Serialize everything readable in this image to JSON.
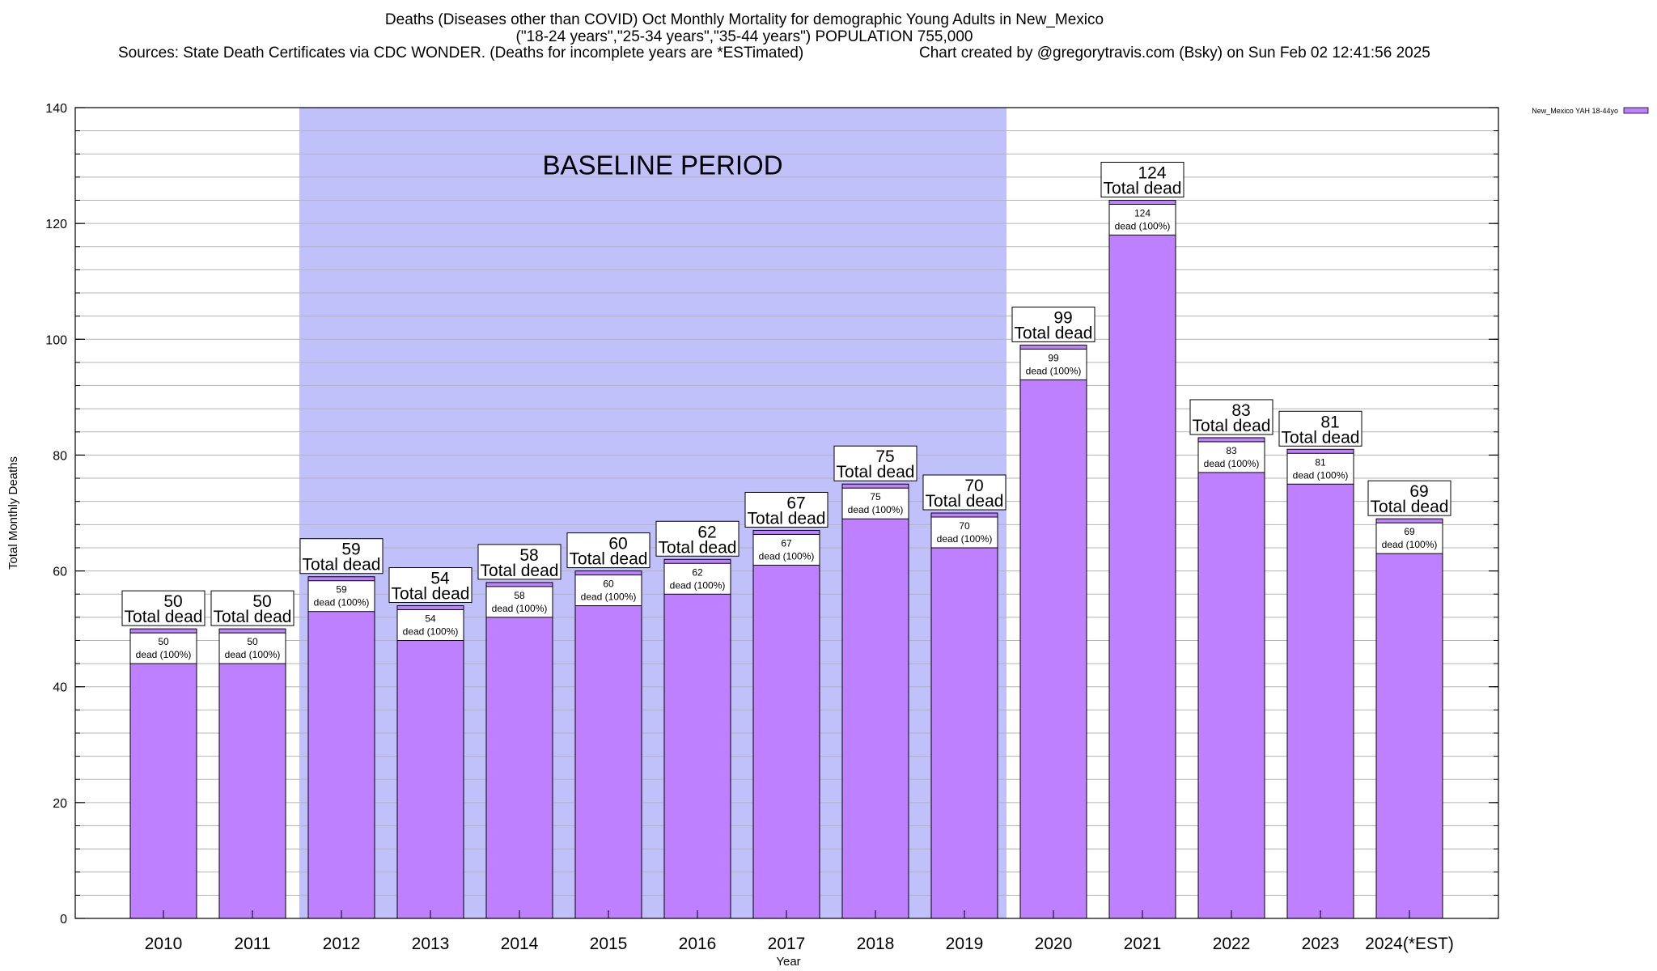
{
  "chart_data": {
    "type": "bar",
    "title_lines": [
      "Deaths (Diseases other than COVID) Oct Monthly Mortality for demographic Young Adults in New_Mexico",
      "(\"18-24 years\",\"25-34 years\",\"35-44 years\") POPULATION 755,000"
    ],
    "sources": "Sources: State Death Certificates via CDC WONDER. (Deaths for incomplete years are *ESTimated)",
    "credit": "Chart created by @gregorytravis.com (Bsky) on Sun Feb 02 12:41:56 2025",
    "xlabel": "Year",
    "ylabel": "Total Monthly Deaths",
    "ylim": [
      0,
      140
    ],
    "yticks": [
      0,
      20,
      40,
      60,
      80,
      100,
      120,
      140
    ],
    "minor_step": 4,
    "grid": true,
    "categories": [
      "2010",
      "2011",
      "2012",
      "2013",
      "2014",
      "2015",
      "2016",
      "2017",
      "2018",
      "2019",
      "2020",
      "2021",
      "2022",
      "2023",
      "2024(*EST)"
    ],
    "series": [
      {
        "name": "New_Mexico YAH 18-44yo",
        "values": [
          50,
          50,
          59,
          54,
          58,
          60,
          62,
          67,
          75,
          70,
          99,
          124,
          83,
          81,
          69
        ]
      }
    ],
    "total_label_text": "Total dead",
    "inner_label_text": "dead (100%)",
    "baseline": {
      "label": "BASELINE PERIOD",
      "start_category": "2012",
      "end_category": "2019"
    },
    "legend_position": "top-right",
    "colors": {
      "bar": "#bf80ff",
      "bar_border": "#000000",
      "baseline_band": "#c0c0fb",
      "grid": "#b4b4b4"
    }
  }
}
